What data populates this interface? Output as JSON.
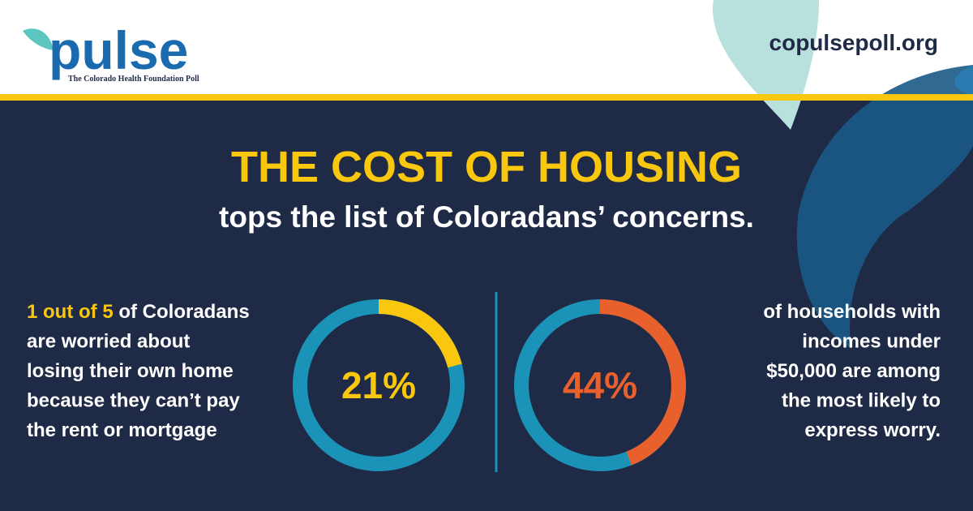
{
  "header": {
    "logo": "pulse",
    "tagline": "The Colorado Health Foundation Poll",
    "url": "copulsepoll.org"
  },
  "headline": {
    "title": "THE COST OF HOUSING",
    "subtitle": "tops the list of Coloradans’ concerns."
  },
  "chart_data": [
    {
      "type": "donut",
      "values": [
        21
      ],
      "value_labels": [
        "21%"
      ],
      "color": "#f9c80e",
      "track_color": "#1b93b8",
      "caption_highlight": "1 out of 5",
      "caption_lines": [
        "of Coloradans",
        "are worried about",
        "losing their own home",
        "because they can’t pay",
        "the rent or mortgage"
      ]
    },
    {
      "type": "donut",
      "values": [
        44
      ],
      "value_labels": [
        "44%"
      ],
      "color": "#e8602c",
      "track_color": "#1b93b8",
      "caption_lines": [
        "of households with",
        "incomes under",
        "$50,000 are among",
        "the most likely to",
        "express worry."
      ]
    }
  ]
}
